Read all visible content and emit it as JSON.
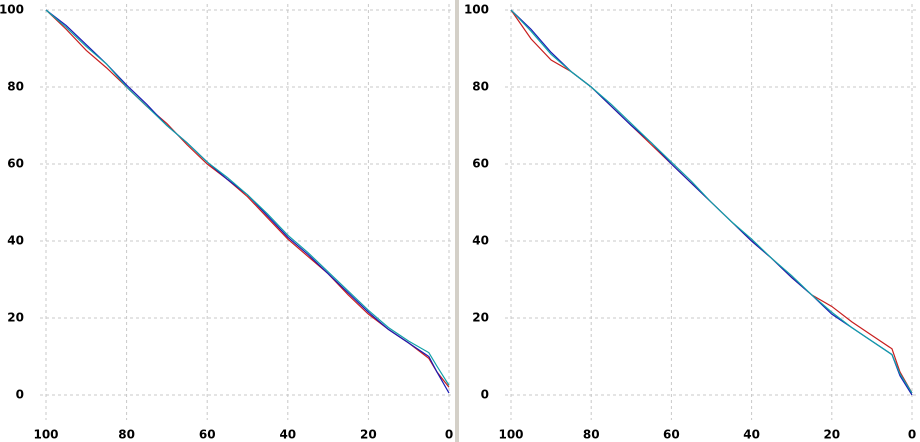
{
  "chart_data": [
    {
      "type": "line",
      "x": [
        100,
        95,
        90,
        85,
        80,
        75,
        70,
        65,
        60,
        55,
        50,
        45,
        40,
        35,
        30,
        25,
        20,
        15,
        10,
        5,
        3,
        0
      ],
      "series": [
        {
          "color": "#c81e1e",
          "values": [
            100,
            95,
            89.5,
            85,
            80,
            75,
            70.5,
            65,
            60,
            56,
            51.5,
            46,
            40.5,
            36,
            31.5,
            26,
            21,
            17,
            13.5,
            9.5,
            6,
            2
          ]
        },
        {
          "color": "#1a1ab4",
          "values": [
            100,
            96,
            91,
            86,
            80.5,
            75.5,
            70,
            65.5,
            60.5,
            56,
            52,
            46.5,
            41,
            36.5,
            31.5,
            26.5,
            21.5,
            17,
            13.5,
            10,
            6,
            0.5
          ]
        },
        {
          "color": "#10a0a8",
          "values": [
            100,
            95.5,
            90.5,
            86,
            80,
            75,
            70,
            65.5,
            60.5,
            56.5,
            52,
            47,
            41.5,
            37,
            32,
            27,
            22,
            17.5,
            14,
            11,
            7.5,
            2.5
          ]
        }
      ],
      "xlim": [
        100,
        0
      ],
      "xticks": [
        100,
        80,
        60,
        40,
        20,
        0
      ],
      "ylim": [
        0,
        100
      ],
      "yticks": [
        0,
        20,
        40,
        60,
        80,
        100
      ],
      "grid": true
    },
    {
      "type": "line",
      "x": [
        100,
        95,
        90,
        85,
        80,
        75,
        70,
        65,
        60,
        55,
        50,
        45,
        40,
        35,
        30,
        25,
        20,
        15,
        10,
        5,
        3,
        0
      ],
      "series": [
        {
          "color": "#c81e1e",
          "values": [
            100,
            92.5,
            87,
            84,
            80,
            75,
            70,
            65,
            60,
            55,
            50,
            45,
            40,
            35.5,
            30.5,
            26,
            23,
            19,
            15.5,
            12,
            6,
            0.5
          ]
        },
        {
          "color": "#1a1ab4",
          "values": [
            100,
            95,
            89,
            84,
            80,
            75,
            70,
            65.5,
            60,
            55,
            50,
            45,
            40,
            35.5,
            30.5,
            26,
            21,
            17.5,
            14,
            10.5,
            5,
            0
          ]
        },
        {
          "color": "#10a0a8",
          "values": [
            100,
            94.5,
            88.5,
            84,
            80,
            75.5,
            70.5,
            65.5,
            60.5,
            55.5,
            50,
            45,
            40.5,
            35.5,
            31,
            26,
            21.5,
            17.5,
            14,
            10.5,
            5.5,
            0.5
          ]
        }
      ],
      "xlim": [
        100,
        0
      ],
      "xticks": [
        100,
        80,
        60,
        40,
        20,
        0
      ],
      "ylim": [
        0,
        100
      ],
      "yticks": [
        0,
        20,
        40,
        60,
        80,
        100
      ],
      "grid": true
    }
  ]
}
